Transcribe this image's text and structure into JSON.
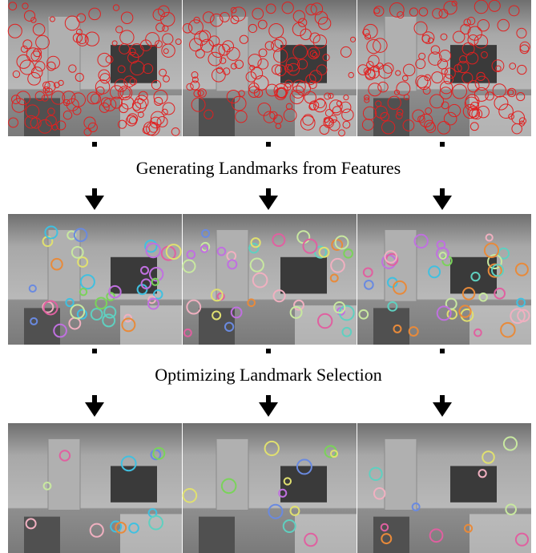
{
  "steps": [
    "Generating Landmarks from Features",
    "Optimizing Landmark Selection"
  ]
}
